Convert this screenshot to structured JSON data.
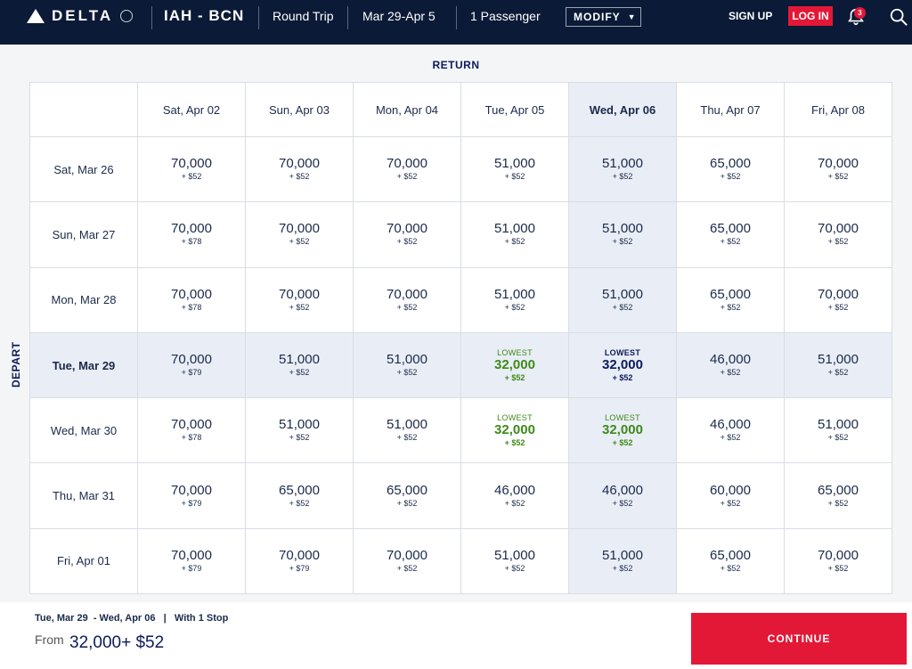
{
  "header": {
    "brand": "DELTA",
    "route": "IAH - BCN",
    "trip_type": "Round Trip",
    "dates": "Mar 29-Apr 5",
    "passengers": "1 Passenger",
    "modify_label": "MODIFY",
    "signup_label": "SIGN UP",
    "login_label": "LOG IN",
    "notification_count": "3",
    "icons": [
      "globe-icon",
      "bell-icon",
      "search-icon",
      "caret-down-icon"
    ]
  },
  "return_label": "RETURN",
  "depart_label": "DEPART",
  "columns": [
    "Sat, Apr 02",
    "Sun, Apr 03",
    "Mon, Apr 04",
    "Tue, Apr 05",
    "Wed, Apr 06",
    "Thu, Apr 07",
    "Fri, Apr 08"
  ],
  "rows": [
    {
      "label": "Sat, Mar 26",
      "cells": [
        {
          "pts": "70,000",
          "fee": "+ $52"
        },
        {
          "pts": "70,000",
          "fee": "+ $52"
        },
        {
          "pts": "70,000",
          "fee": "+ $52"
        },
        {
          "pts": "51,000",
          "fee": "+ $52"
        },
        {
          "pts": "51,000",
          "fee": "+ $52"
        },
        {
          "pts": "65,000",
          "fee": "+ $52"
        },
        {
          "pts": "70,000",
          "fee": "+ $52"
        }
      ]
    },
    {
      "label": "Sun, Mar 27",
      "cells": [
        {
          "pts": "70,000",
          "fee": "+ $78"
        },
        {
          "pts": "70,000",
          "fee": "+ $52"
        },
        {
          "pts": "70,000",
          "fee": "+ $52"
        },
        {
          "pts": "51,000",
          "fee": "+ $52"
        },
        {
          "pts": "51,000",
          "fee": "+ $52"
        },
        {
          "pts": "65,000",
          "fee": "+ $52"
        },
        {
          "pts": "70,000",
          "fee": "+ $52"
        }
      ]
    },
    {
      "label": "Mon, Mar 28",
      "cells": [
        {
          "pts": "70,000",
          "fee": "+ $78"
        },
        {
          "pts": "70,000",
          "fee": "+ $52"
        },
        {
          "pts": "70,000",
          "fee": "+ $52"
        },
        {
          "pts": "51,000",
          "fee": "+ $52"
        },
        {
          "pts": "51,000",
          "fee": "+ $52"
        },
        {
          "pts": "65,000",
          "fee": "+ $52"
        },
        {
          "pts": "70,000",
          "fee": "+ $52"
        }
      ]
    },
    {
      "label": "Tue, Mar 29",
      "cells": [
        {
          "pts": "70,000",
          "fee": "+ $79"
        },
        {
          "pts": "51,000",
          "fee": "+ $52"
        },
        {
          "pts": "51,000",
          "fee": "+ $52"
        },
        {
          "lowest": "LOWEST",
          "pts": "32,000",
          "fee": "+ $52"
        },
        {
          "lowest": "LOWEST",
          "pts": "32,000",
          "fee": "+ $52"
        },
        {
          "pts": "46,000",
          "fee": "+ $52"
        },
        {
          "pts": "51,000",
          "fee": "+ $52"
        }
      ]
    },
    {
      "label": "Wed, Mar 30",
      "cells": [
        {
          "pts": "70,000",
          "fee": "+ $78"
        },
        {
          "pts": "51,000",
          "fee": "+ $52"
        },
        {
          "pts": "51,000",
          "fee": "+ $52"
        },
        {
          "lowest": "LOWEST",
          "pts": "32,000",
          "fee": "+ $52"
        },
        {
          "lowest": "LOWEST",
          "pts": "32,000",
          "fee": "+ $52"
        },
        {
          "pts": "46,000",
          "fee": "+ $52"
        },
        {
          "pts": "51,000",
          "fee": "+ $52"
        }
      ]
    },
    {
      "label": "Thu, Mar 31",
      "cells": [
        {
          "pts": "70,000",
          "fee": "+ $79"
        },
        {
          "pts": "65,000",
          "fee": "+ $52"
        },
        {
          "pts": "65,000",
          "fee": "+ $52"
        },
        {
          "pts": "46,000",
          "fee": "+ $52"
        },
        {
          "pts": "46,000",
          "fee": "+ $52"
        },
        {
          "pts": "60,000",
          "fee": "+ $52"
        },
        {
          "pts": "65,000",
          "fee": "+ $52"
        }
      ]
    },
    {
      "label": "Fri, Apr 01",
      "cells": [
        {
          "pts": "70,000",
          "fee": "+ $79"
        },
        {
          "pts": "70,000",
          "fee": "+ $79"
        },
        {
          "pts": "70,000",
          "fee": "+ $52"
        },
        {
          "pts": "51,000",
          "fee": "+ $52"
        },
        {
          "pts": "51,000",
          "fee": "+ $52"
        },
        {
          "pts": "65,000",
          "fee": "+ $52"
        },
        {
          "pts": "70,000",
          "fee": "+ $52"
        }
      ]
    }
  ],
  "selected": {
    "row": 3,
    "col": 4
  },
  "footer": {
    "selection": "Tue, Mar 29  - Wed, Apr 06   |   With 1 Stop",
    "from_label": "From",
    "price": "32,000+ $52",
    "continue_label": "CONTINUE"
  },
  "colors": {
    "navy": "#0b1a36",
    "red": "#e31837",
    "lowest_green": "#3d8a1a",
    "highlight": "#e9edf5"
  }
}
